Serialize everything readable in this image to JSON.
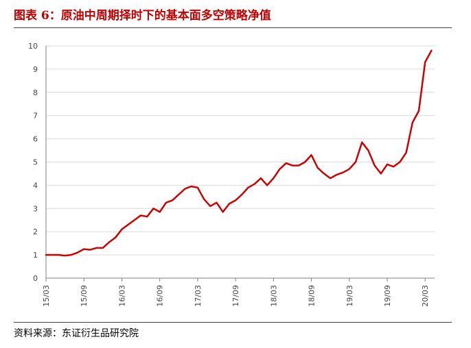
{
  "header": {
    "title": "图表 6：原油中周期择时下的基本面多空策略净值"
  },
  "footer": {
    "source": "资料来源：东证衍生品研究院"
  },
  "colors": {
    "series": "#cc0000",
    "grid": "#d9d9d9",
    "axis": "#808080",
    "title": "#c00000"
  },
  "chart_data": {
    "type": "line",
    "ylim": [
      0,
      10
    ],
    "yticks": [
      0,
      1,
      2,
      3,
      4,
      5,
      6,
      7,
      8,
      9,
      10
    ],
    "xticks": [
      "15/03",
      "15/09",
      "16/03",
      "16/09",
      "17/03",
      "17/09",
      "18/03",
      "18/09",
      "19/03",
      "19/09",
      "20/03"
    ],
    "grid": "horizontal",
    "legend": "none",
    "series": [
      {
        "x": [
          "15/03",
          "15/04",
          "15/05",
          "15/06",
          "15/07",
          "15/08",
          "15/09",
          "15/10",
          "15/11",
          "15/12",
          "16/01",
          "16/02",
          "16/03",
          "16/04",
          "16/05",
          "16/06",
          "16/07",
          "16/08",
          "16/09",
          "16/10",
          "16/11",
          "16/12",
          "17/01",
          "17/02",
          "17/03",
          "17/04",
          "17/05",
          "17/06",
          "17/07",
          "17/08",
          "17/09",
          "17/10",
          "17/11",
          "17/12",
          "18/01",
          "18/02",
          "18/03",
          "18/04",
          "18/05",
          "18/06",
          "18/07",
          "18/08",
          "18/09",
          "18/10",
          "18/11",
          "18/12",
          "19/01",
          "19/02",
          "19/03",
          "19/04",
          "19/05",
          "19/06",
          "19/07",
          "19/08",
          "19/09",
          "19/10",
          "19/11",
          "19/12",
          "20/01",
          "20/02",
          "20/03",
          "20/04"
        ],
        "values": [
          1.0,
          1.0,
          1.0,
          0.97,
          1.0,
          1.1,
          1.25,
          1.22,
          1.3,
          1.3,
          1.55,
          1.75,
          2.1,
          2.3,
          2.5,
          2.7,
          2.65,
          3.0,
          2.85,
          3.25,
          3.35,
          3.6,
          3.85,
          3.95,
          3.9,
          3.4,
          3.1,
          3.25,
          2.85,
          3.2,
          3.35,
          3.6,
          3.9,
          4.05,
          4.3,
          4.0,
          4.3,
          4.7,
          4.95,
          4.85,
          4.85,
          5.0,
          5.3,
          4.75,
          4.5,
          4.3,
          4.45,
          4.55,
          4.7,
          5.0,
          5.85,
          5.5,
          4.85,
          4.5,
          4.9,
          4.8,
          5.0,
          5.4,
          6.7,
          7.2,
          9.3,
          9.8
        ]
      }
    ]
  }
}
